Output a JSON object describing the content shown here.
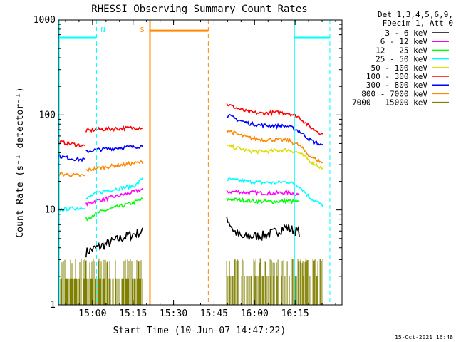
{
  "chart_data": {
    "type": "line",
    "title": "RHESSI Observing Summary Count Rates",
    "xlabel": "Start Time (10-Jun-07 14:47:22)",
    "ylabel": "Count Rate (s⁻¹ detector⁻¹)",
    "yscale": "log",
    "ylim": [
      1,
      1000
    ],
    "xlim_minutes": [
      0,
      105
    ],
    "x_ticks": [
      {
        "minute": 12.63,
        "label": "15:00"
      },
      {
        "minute": 27.63,
        "label": "15:15"
      },
      {
        "minute": 42.63,
        "label": "15:30"
      },
      {
        "minute": 57.63,
        "label": "15:45"
      },
      {
        "minute": 72.63,
        "label": "16:00"
      },
      {
        "minute": 87.63,
        "label": "16:15"
      }
    ],
    "y_ticks": [
      {
        "value": 1,
        "label": "1"
      },
      {
        "value": 10,
        "label": "10"
      },
      {
        "value": 100,
        "label": "100"
      },
      {
        "value": 1000,
        "label": "1000"
      }
    ],
    "legend_header": [
      "Det 1,3,4,5,6,9,",
      "FDecim 1, Att 0"
    ],
    "legend_placement": "right",
    "series": [
      {
        "name": "3 - 6 keV",
        "color": "#000000",
        "segments": [
          {
            "x": [
              10.2,
              14,
              18,
              22,
              26,
              31.3
            ],
            "y": [
              3.6,
              4.0,
              4.4,
              4.9,
              5.4,
              5.9
            ]
          },
          {
            "x": [
              62.3,
              63.5,
              65,
              68,
              72,
              76,
              80,
              84,
              89.5
            ],
            "y": [
              8.5,
              7.2,
              6.0,
              5.1,
              5.3,
              5.4,
              5.8,
              6.6,
              5.8
            ]
          }
        ]
      },
      {
        "name": "6 - 12 keV",
        "color": "#ff00ff",
        "segments": [
          {
            "x": [
              10.2,
              14,
              18,
              22,
              26,
              31.3
            ],
            "y": [
              11.5,
              12.5,
              13.2,
              14.0,
              15.0,
              16.5
            ]
          },
          {
            "x": [
              62.3,
              66,
              70,
              75,
              80,
              85,
              89.5
            ],
            "y": [
              15.5,
              15.6,
              15.3,
              15.1,
              15.0,
              15.3,
              14.5
            ]
          }
        ]
      },
      {
        "name": "12 - 25 keV",
        "color": "#00ff00",
        "segments": [
          {
            "x": [
              10.2,
              14,
              18,
              22,
              26,
              31.3
            ],
            "y": [
              8.0,
              9.2,
              10.0,
              10.8,
              11.5,
              13.0
            ]
          },
          {
            "x": [
              62.3,
              66,
              70,
              75,
              80,
              85,
              89.5
            ],
            "y": [
              13.0,
              12.8,
              12.5,
              12.3,
              12.2,
              12.5,
              12.0
            ]
          }
        ]
      },
      {
        "name": "25 - 50 keV",
        "color": "#00ffff",
        "segments": [
          {
            "x": [
              0,
              4,
              8,
              10
            ],
            "y": [
              10.0,
              10.3,
              10.5,
              10.8
            ]
          },
          {
            "x": [
              10.2,
              14,
              18,
              22,
              26,
              29,
              31.3
            ],
            "y": [
              13.0,
              15.0,
              16.0,
              16.8,
              17.5,
              18.5,
              22.0
            ]
          },
          {
            "x": [
              62.3,
              66,
              70,
              75,
              80,
              85,
              89,
              93,
              98
            ],
            "y": [
              21.0,
              20.5,
              20.0,
              19.5,
              19.3,
              19.8,
              18.0,
              13.5,
              11.0
            ]
          }
        ]
      },
      {
        "name": "50 - 100 keV",
        "color": "#dddd00",
        "segments": [
          {
            "x": [
              62.3,
              66,
              70,
              75,
              80,
              85,
              89,
              93,
              98
            ],
            "y": [
              47,
              45,
              42,
              41,
              42,
              43,
              40,
              33,
              27
            ]
          }
        ]
      },
      {
        "name": "100 - 300 keV",
        "color": "#ff0000",
        "segments": [
          {
            "x": [
              0,
              4,
              8,
              10
            ],
            "y": [
              52,
              50,
              48,
              47
            ]
          },
          {
            "x": [
              10.2,
              14,
              18,
              22,
              26,
              31.3
            ],
            "y": [
              68,
              70,
              71,
              72,
              73,
              74
            ]
          },
          {
            "x": [
              62.3,
              66,
              70,
              75,
              80,
              85,
              89,
              93,
              98
            ],
            "y": [
              130,
              118,
              108,
              104,
              106,
              105,
              95,
              75,
              62
            ]
          }
        ]
      },
      {
        "name": "300 - 800 keV",
        "color": "#0000ff",
        "segments": [
          {
            "x": [
              0,
              4,
              8,
              10
            ],
            "y": [
              37,
              35,
              34,
              34
            ]
          },
          {
            "x": [
              10.2,
              14,
              18,
              22,
              26,
              31.3
            ],
            "y": [
              41,
              43,
              44,
              45,
              46,
              47
            ]
          },
          {
            "x": [
              62.3,
              66,
              70,
              75,
              80,
              85,
              89,
              93,
              98
            ],
            "y": [
              100,
              90,
              82,
              78,
              77,
              76,
              68,
              55,
              47
            ]
          }
        ]
      },
      {
        "name": "800 - 7000 keV",
        "color": "#ff8800",
        "segments": [
          {
            "x": [
              0,
              4,
              8,
              10
            ],
            "y": [
              24,
              23.5,
              23,
              23
            ]
          },
          {
            "x": [
              10.2,
              14,
              18,
              22,
              26,
              31.3
            ],
            "y": [
              26,
              27.5,
              28.5,
              29.5,
              30.5,
              32
            ]
          },
          {
            "x": [
              62.3,
              66,
              70,
              75,
              80,
              85,
              89,
              93,
              98
            ],
            "y": [
              70,
              63,
              58,
              55,
              55,
              54,
              48,
              37,
              31
            ]
          }
        ]
      },
      {
        "name": "7000 - 15000 keV",
        "color": "#808000",
        "segments": [
          {
            "x": [
              0,
              10,
              31.3
            ],
            "y": [
              1.9,
              1.9,
              1.9
            ]
          },
          {
            "x": [
              62.3,
              89,
              98
            ],
            "y": [
              2.0,
              2.0,
              2.3
            ]
          }
        ]
      }
    ],
    "annotations": [
      {
        "label": "N",
        "color": "#00ffff",
        "x_minute": 14.1,
        "bar_from": 0,
        "bar_to": 14.1,
        "y_level": 650
      },
      {
        "label": "S",
        "color": "#ff8800",
        "x_minute": 33.9,
        "bar_from": 33.9,
        "bar_to": 55.5,
        "y_level": 770
      },
      {
        "label": "",
        "color": "#00ffff",
        "x_minute": 87.4,
        "bar_from": 87.4,
        "bar_to": 100.5,
        "y_level": 650
      }
    ],
    "footer_timestamp": "15-Oct-2021 16:48",
    "grid": false
  }
}
